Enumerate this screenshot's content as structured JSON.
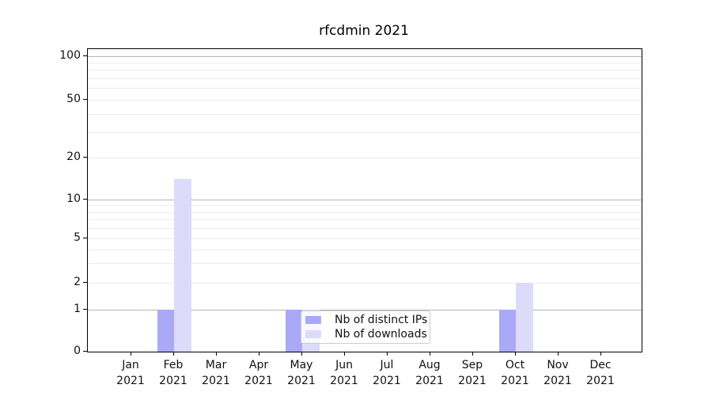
{
  "chart_data": {
    "type": "bar",
    "title": "rfcdmin 2021",
    "categories": [
      "Jan",
      "Feb",
      "Mar",
      "Apr",
      "May",
      "Jun",
      "Jul",
      "Aug",
      "Sep",
      "Oct",
      "Nov",
      "Dec"
    ],
    "x_tick_second_line": "2021",
    "series": [
      {
        "name": "Nb of distinct IPs",
        "color": "#a9a9f8",
        "values": [
          0,
          1,
          0,
          0,
          1,
          0,
          0,
          0,
          0,
          1,
          0,
          0
        ]
      },
      {
        "name": "Nb of downloads",
        "color": "#dcdcfa",
        "values": [
          0,
          14,
          0,
          0,
          1,
          0,
          0,
          0,
          0,
          2,
          0,
          0
        ]
      }
    ],
    "xlabel": "",
    "ylabel": "",
    "y_scale": "symlog",
    "y_tick_labels": [
      0,
      1,
      2,
      5,
      10,
      20,
      50,
      100
    ],
    "y_major_gridlines": [
      1,
      10,
      100
    ],
    "y_minor_gridlines": [
      2,
      3,
      4,
      5,
      6,
      7,
      8,
      9,
      20,
      30,
      40,
      50,
      60,
      70,
      80,
      90
    ],
    "ylim": [
      0,
      110
    ],
    "grid": true,
    "legend_position": "lower center",
    "colors": {
      "major_grid": "#b5b5b5",
      "minor_grid": "#ebebeb",
      "axis": "#000000",
      "background": "#ffffff"
    }
  }
}
